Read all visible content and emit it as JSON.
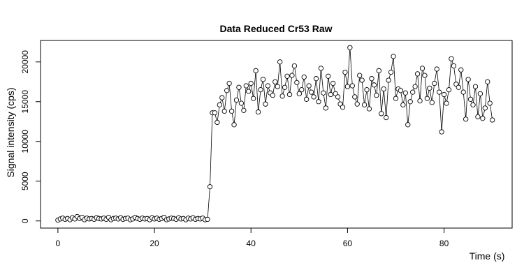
{
  "chart_data": {
    "type": "line",
    "title": "Data Reduced Cr53 Raw",
    "x_label": "Time (s)",
    "y_label": "Signal intensity (cps)",
    "x": [
      0,
      0.5,
      1,
      1.5,
      2,
      2.5,
      3,
      3.5,
      4,
      4.5,
      5,
      5.5,
      6,
      6.5,
      7,
      7.5,
      8,
      8.5,
      9,
      9.5,
      10,
      10.5,
      11,
      11.5,
      12,
      12.5,
      13,
      13.5,
      14,
      14.5,
      15,
      15.5,
      16,
      16.5,
      17,
      17.5,
      18,
      18.5,
      19,
      19.5,
      20,
      20.5,
      21,
      21.5,
      22,
      22.5,
      23,
      23.5,
      24,
      24.5,
      25,
      25.5,
      26,
      26.5,
      27,
      27.5,
      28,
      28.5,
      29,
      29.5,
      30,
      30.5,
      31,
      31.5,
      32,
      32.5,
      33,
      33.5,
      34,
      34.5,
      35,
      35.5,
      36,
      36.5,
      37,
      37.5,
      38,
      38.5,
      39,
      39.5,
      40,
      40.5,
      41,
      41.5,
      42,
      42.5,
      43,
      43.5,
      44,
      44.5,
      45,
      45.5,
      46,
      46.5,
      47,
      47.5,
      48,
      48.5,
      49,
      49.5,
      50,
      50.5,
      51,
      51.5,
      52,
      52.5,
      53,
      53.5,
      54,
      54.5,
      55,
      55.5,
      56,
      56.5,
      57,
      57.5,
      58,
      58.5,
      59,
      59.5,
      60,
      60.5,
      61,
      61.5,
      62,
      62.5,
      63,
      63.5,
      64,
      64.5,
      65,
      65.5,
      66,
      66.5,
      67,
      67.5,
      68,
      68.5,
      69,
      69.5,
      70,
      70.5,
      71,
      71.5,
      72,
      72.5,
      73,
      73.5,
      74,
      74.5,
      75,
      75.5,
      76,
      76.5,
      77,
      77.5,
      78,
      78.5,
      79,
      79.5,
      80,
      80.5,
      81,
      81.5,
      82,
      82.5,
      83,
      83.5,
      84,
      84.5,
      85,
      85.5,
      86,
      86.5,
      87,
      87.5,
      88,
      88.5,
      89,
      89.5,
      90
    ],
    "values": [
      100,
      250,
      350,
      200,
      300,
      150,
      400,
      250,
      550,
      300,
      450,
      150,
      350,
      250,
      300,
      200,
      400,
      300,
      250,
      350,
      200,
      450,
      150,
      300,
      350,
      250,
      400,
      200,
      300,
      350,
      150,
      250,
      450,
      300,
      200,
      350,
      250,
      300,
      150,
      400,
      250,
      350,
      200,
      300,
      450,
      150,
      250,
      350,
      300,
      200,
      400,
      250,
      300,
      150,
      350,
      250,
      400,
      200,
      300,
      250,
      350,
      150,
      200,
      4300,
      13600,
      13600,
      12400,
      14600,
      15500,
      13800,
      16400,
      17300,
      13800,
      12100,
      15200,
      16800,
      14800,
      13900,
      17000,
      16300,
      17300,
      15400,
      18900,
      13700,
      16500,
      17800,
      14700,
      17000,
      16100,
      15800,
      17500,
      16900,
      20000,
      15700,
      16800,
      18200,
      15900,
      18300,
      19500,
      17400,
      16000,
      16500,
      18100,
      15300,
      17000,
      16200,
      15600,
      17900,
      15000,
      19200,
      16100,
      14200,
      18200,
      15900,
      17300,
      16000,
      15600,
      14700,
      14300,
      18700,
      16900,
      21800,
      17000,
      15600,
      14700,
      18300,
      17700,
      14600,
      16500,
      14100,
      17900,
      17100,
      15800,
      18900,
      13500,
      16600,
      13000,
      17700,
      18700,
      20700,
      15400,
      16600,
      16400,
      14600,
      16100,
      12100,
      15000,
      16200,
      16900,
      18500,
      15100,
      19200,
      18300,
      15400,
      16700,
      14900,
      17300,
      19100,
      16200,
      11200,
      15900,
      14800,
      16500,
      20400,
      19500,
      17200,
      16800,
      19000,
      16200,
      12800,
      17800,
      15300,
      14600,
      16900,
      13100,
      16000,
      12900,
      14200,
      17500,
      14800,
      12700
    ],
    "color": "#000000",
    "xlim": [
      -3.6,
      94.1
    ],
    "ylim": [
      -900,
      22700
    ],
    "xticks": [
      0,
      20,
      40,
      60,
      80
    ],
    "yticks": [
      0,
      5000,
      10000,
      15000,
      20000
    ]
  }
}
